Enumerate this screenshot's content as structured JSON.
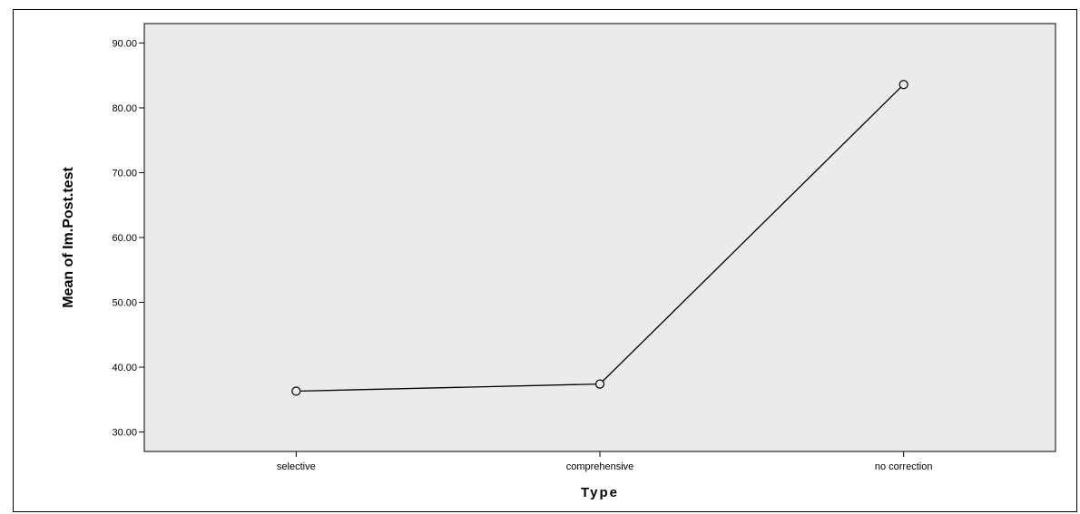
{
  "chart_data": {
    "type": "line",
    "title": "",
    "xlabel": "Type",
    "ylabel": "Mean of Im.Post.test",
    "categories": [
      "selective",
      "comprehensive",
      "no correction"
    ],
    "values": [
      36.3,
      37.4,
      83.6
    ],
    "ylim": [
      27,
      93
    ],
    "yticks": [
      30,
      40,
      50,
      60,
      70,
      80,
      90
    ],
    "ytick_labels": [
      "30.00",
      "40.00",
      "50.00",
      "60.00",
      "70.00",
      "80.00",
      "90.00"
    ],
    "grid": false,
    "colors": {
      "plot_background": "#ebebeb",
      "line": "#000000",
      "marker_fill": "#ebebeb"
    }
  }
}
